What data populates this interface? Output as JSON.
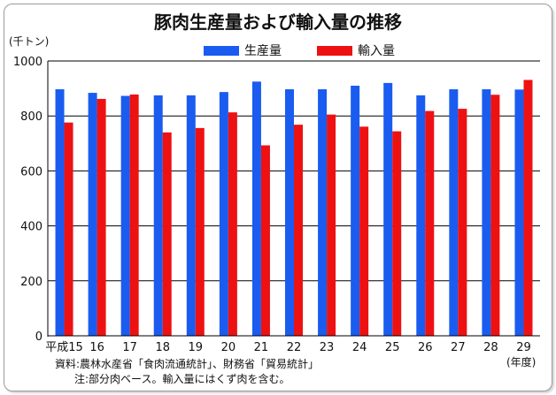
{
  "chart_data": {
    "type": "bar",
    "title": "豚肉生産量および輸入量の推移",
    "y_unit": "(千トン)",
    "x_unit": "(年度)",
    "categories": [
      "平成15",
      "16",
      "17",
      "18",
      "19",
      "20",
      "21",
      "22",
      "23",
      "24",
      "25",
      "26",
      "27",
      "28",
      "29"
    ],
    "series": [
      {
        "name": "生産量",
        "color": "#1a5cf0",
        "values": [
          897,
          884,
          873,
          875,
          875,
          887,
          925,
          897,
          897,
          910,
          920,
          875,
          897,
          897,
          896
        ]
      },
      {
        "name": "輸入量",
        "color": "#ee1111",
        "values": [
          776,
          862,
          878,
          740,
          756,
          813,
          693,
          768,
          805,
          761,
          744,
          818,
          826,
          877,
          931
        ]
      }
    ],
    "ylim": [
      0,
      1000
    ],
    "yticks": [
      0,
      200,
      400,
      600,
      800,
      1000
    ],
    "grid": true,
    "legend_position": "top"
  },
  "notes": [
    "資料:農林水産省「食肉流通統計」、財務省「貿易統計」",
    "注:部分肉ベース。輸入量にはくず肉を含む。"
  ]
}
